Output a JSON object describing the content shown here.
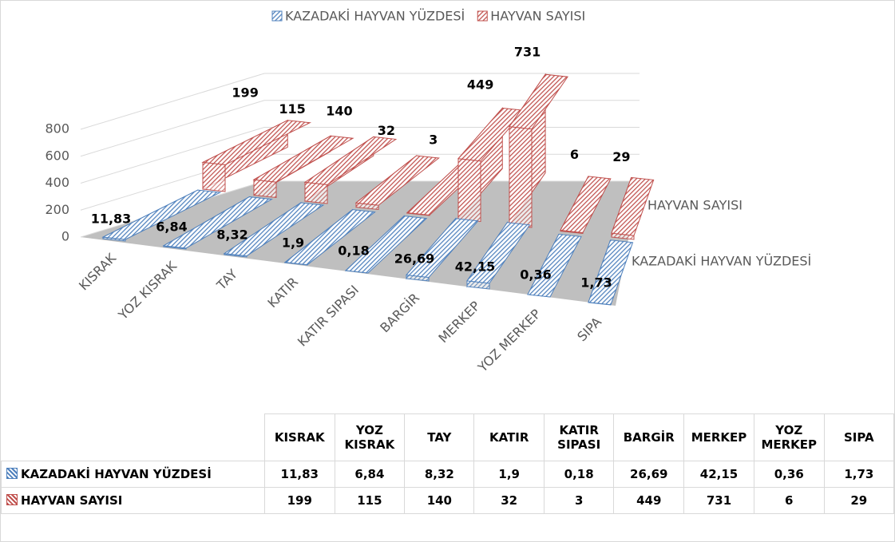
{
  "chart_data": {
    "type": "bar3d",
    "categories": [
      "KISRAK",
      "YOZ KISRAK",
      "TAY",
      "KATIR",
      "KATIR SIPASI",
      "BARGİR",
      "MERKEP",
      "YOZ MERKEP",
      "SIPA"
    ],
    "series": [
      {
        "name": "KAZADAKİ HAYVAN YÜZDESİ",
        "color": "#4f81bd",
        "values": [
          11.83,
          6.84,
          8.32,
          1.9,
          0.18,
          26.69,
          42.15,
          0.36,
          1.73
        ],
        "value_labels": [
          "11,83",
          "6,84",
          "8,32",
          "1,9",
          "0,18",
          "26,69",
          "42,15",
          "0,36",
          "1,73"
        ]
      },
      {
        "name": "HAYVAN SAYISI",
        "color": "#c0504d",
        "values": [
          199,
          115,
          140,
          32,
          3,
          449,
          731,
          6,
          29
        ]
      }
    ],
    "ylim": [
      0,
      800
    ],
    "yticks": [
      0,
      200,
      400,
      600,
      800
    ],
    "grid": true,
    "legend": "top",
    "data_table": true
  }
}
